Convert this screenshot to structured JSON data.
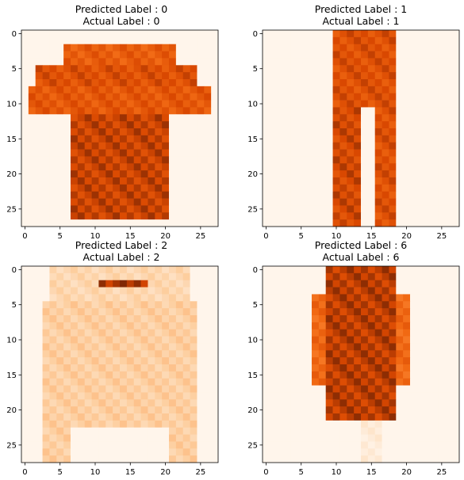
{
  "figure": {
    "background": "#ffffff",
    "colormap": "Oranges"
  },
  "chart_data": [
    {
      "type": "heatmap",
      "title_lines": [
        "Predicted Label : 0",
        "Actual Label : 0"
      ],
      "xticks": [
        0,
        5,
        10,
        15,
        20,
        25
      ],
      "yticks": [
        0,
        5,
        10,
        15,
        20,
        25
      ],
      "xlim": [
        -0.5,
        27.5
      ],
      "ylim": [
        27.5,
        -0.5
      ],
      "image_shape": [
        28,
        28
      ],
      "value_range": [
        0,
        1
      ],
      "shape_note": "t-shirt",
      "approx_regions": [
        {
          "rows": [
            2,
            4
          ],
          "cols": [
            6,
            21
          ],
          "value": 0.8
        },
        {
          "rows": [
            5,
            7
          ],
          "cols": [
            2,
            24
          ],
          "value": 0.85
        },
        {
          "rows": [
            8,
            11
          ],
          "cols": [
            1,
            26
          ],
          "value": 0.82
        },
        {
          "rows": [
            12,
            26
          ],
          "cols": [
            7,
            20
          ],
          "value": 0.9
        }
      ]
    },
    {
      "type": "heatmap",
      "title_lines": [
        "Predicted Label : 1",
        "Actual Label : 1"
      ],
      "xticks": [
        0,
        5,
        10,
        15,
        20,
        25
      ],
      "yticks": [
        0,
        5,
        10,
        15,
        20,
        25
      ],
      "xlim": [
        -0.5,
        27.5
      ],
      "ylim": [
        27.5,
        -0.5
      ],
      "image_shape": [
        28,
        28
      ],
      "value_range": [
        0,
        1
      ],
      "shape_note": "trouser",
      "approx_regions": [
        {
          "rows": [
            0,
            10
          ],
          "cols": [
            10,
            18
          ],
          "value": 0.85
        },
        {
          "rows": [
            11,
            27
          ],
          "cols": [
            10,
            13
          ],
          "value": 0.88
        },
        {
          "rows": [
            11,
            27
          ],
          "cols": [
            16,
            18
          ],
          "value": 0.85
        }
      ]
    },
    {
      "type": "heatmap",
      "title_lines": [
        "Predicted Label : 2",
        "Actual Label : 2"
      ],
      "xticks": [
        0,
        5,
        10,
        15,
        20,
        25
      ],
      "yticks": [
        0,
        5,
        10,
        15,
        20,
        25
      ],
      "xlim": [
        -0.5,
        27.5
      ],
      "ylim": [
        27.5,
        -0.5
      ],
      "image_shape": [
        28,
        28
      ],
      "value_range": [
        0,
        1
      ],
      "shape_note": "pullover",
      "approx_regions": [
        {
          "rows": [
            0,
            4
          ],
          "cols": [
            4,
            23
          ],
          "value": 0.25
        },
        {
          "rows": [
            5,
            22
          ],
          "cols": [
            7,
            20
          ],
          "value": 0.3
        },
        {
          "rows": [
            5,
            27
          ],
          "cols": [
            3,
            6
          ],
          "value": 0.3
        },
        {
          "rows": [
            5,
            27
          ],
          "cols": [
            21,
            24
          ],
          "value": 0.3
        },
        {
          "rows": [
            2,
            2
          ],
          "cols": [
            11,
            17
          ],
          "value": 0.95
        }
      ]
    },
    {
      "type": "heatmap",
      "title_lines": [
        "Predicted Label : 6",
        "Actual Label : 6"
      ],
      "xticks": [
        0,
        5,
        10,
        15,
        20,
        25
      ],
      "yticks": [
        0,
        5,
        10,
        15,
        20,
        25
      ],
      "xlim": [
        -0.5,
        27.5
      ],
      "ylim": [
        27.5,
        -0.5
      ],
      "image_shape": [
        28,
        28
      ],
      "value_range": [
        0,
        1
      ],
      "shape_note": "shirt",
      "approx_regions": [
        {
          "rows": [
            0,
            21
          ],
          "cols": [
            9,
            18
          ],
          "value": 0.92
        },
        {
          "rows": [
            4,
            16
          ],
          "cols": [
            7,
            8
          ],
          "value": 0.75
        },
        {
          "rows": [
            4,
            16
          ],
          "cols": [
            19,
            20
          ],
          "value": 0.75
        },
        {
          "rows": [
            22,
            27
          ],
          "cols": [
            14,
            16
          ],
          "value": 0.1
        }
      ]
    }
  ]
}
